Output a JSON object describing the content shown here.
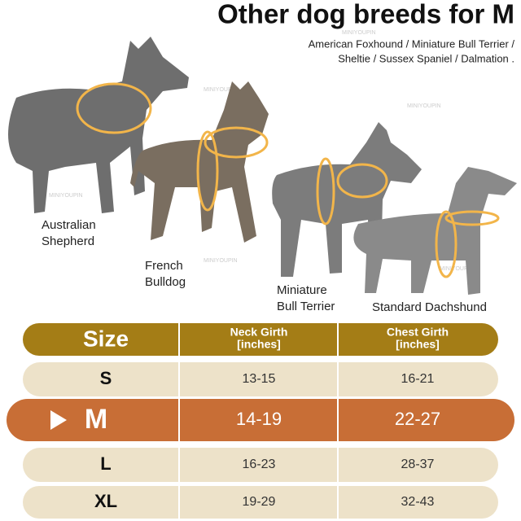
{
  "header": {
    "title": "Other dog breeds for M",
    "subtitle": [
      "American Foxhound / Miniature Bull Terrier /",
      "Sheltie / Sussex Spaniel / Dalmation ."
    ]
  },
  "watermark": "MINIYOUPIN",
  "dogs": [
    {
      "label": [
        "Australian",
        "Shepherd"
      ]
    },
    {
      "label": [
        "French",
        "Bulldog"
      ]
    },
    {
      "label": [
        "Miniature",
        "Bull Terrier"
      ]
    },
    {
      "label": [
        "Standard Dachshund"
      ]
    }
  ],
  "table": {
    "header": [
      [
        "Size"
      ],
      [
        "Neck Girth",
        "[inches]"
      ],
      [
        "Chest Girth",
        "[inches]"
      ]
    ],
    "rows": [
      [
        "S",
        "13-15",
        "16-21"
      ],
      [
        "M",
        "14-19",
        "22-27"
      ],
      [
        "L",
        "16-23",
        "28-37"
      ],
      [
        "XL",
        "19-29",
        "32-43"
      ]
    ]
  }
}
